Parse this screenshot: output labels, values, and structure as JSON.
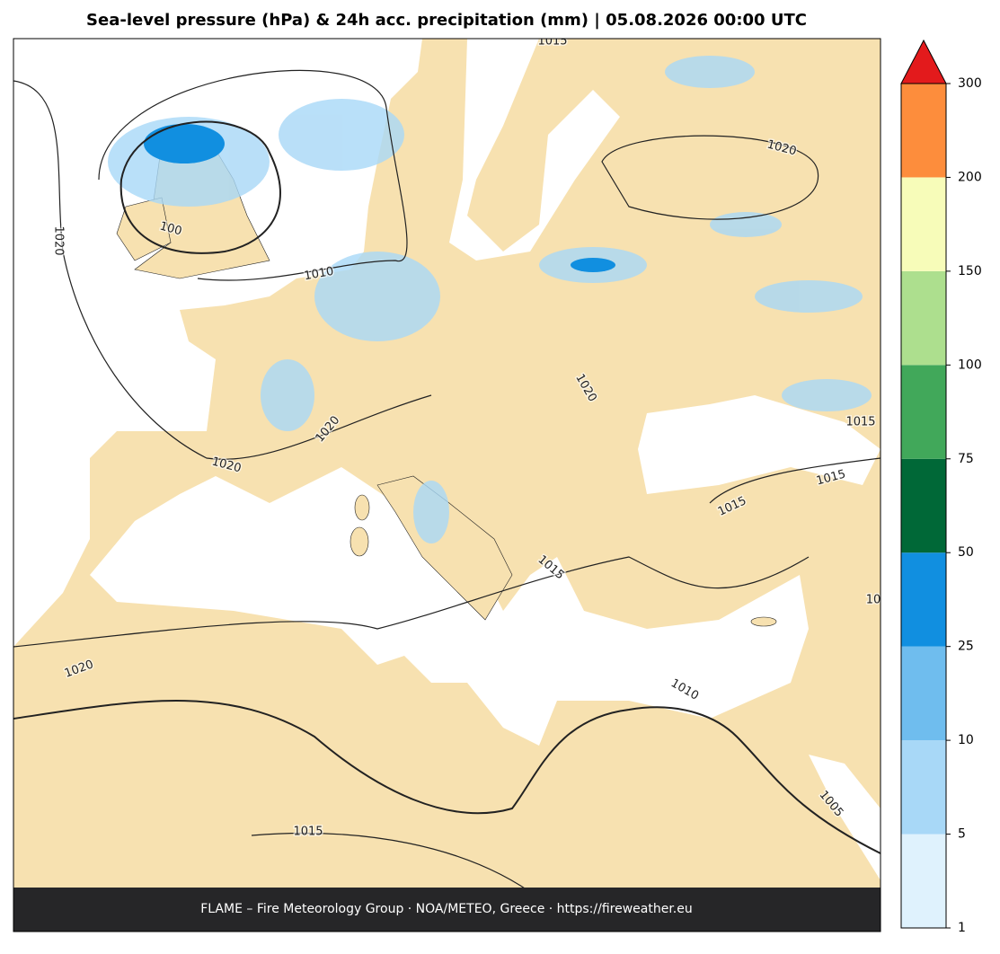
{
  "title": "Sea-level pressure (hPa) & 24h acc. precipitation (mm)  |  05.08.2026 00:00 UTC",
  "isobar_labels": [
    "1015",
    "1020",
    "100",
    "1020",
    "1010",
    "1020",
    "1020",
    "1020",
    "1015",
    "1015",
    "1015",
    "1015",
    "10",
    "1020",
    "1010",
    "1015",
    "1005"
  ],
  "colorbar": {
    "ticks": [
      1,
      5,
      10,
      25,
      50,
      75,
      100,
      150,
      200,
      300
    ],
    "colors": [
      "#dff2fd",
      "#a8d8f7",
      "#6fbdee",
      "#118fe0",
      "#006837",
      "#41a85a",
      "#addf8e",
      "#f7fcb9",
      "#fd8d3c"
    ],
    "extend_color": "#e31a1c"
  },
  "footer": "FLAME – Fire Meteorology Group · NOA/METEO, Greece · https://fireweather.eu"
}
